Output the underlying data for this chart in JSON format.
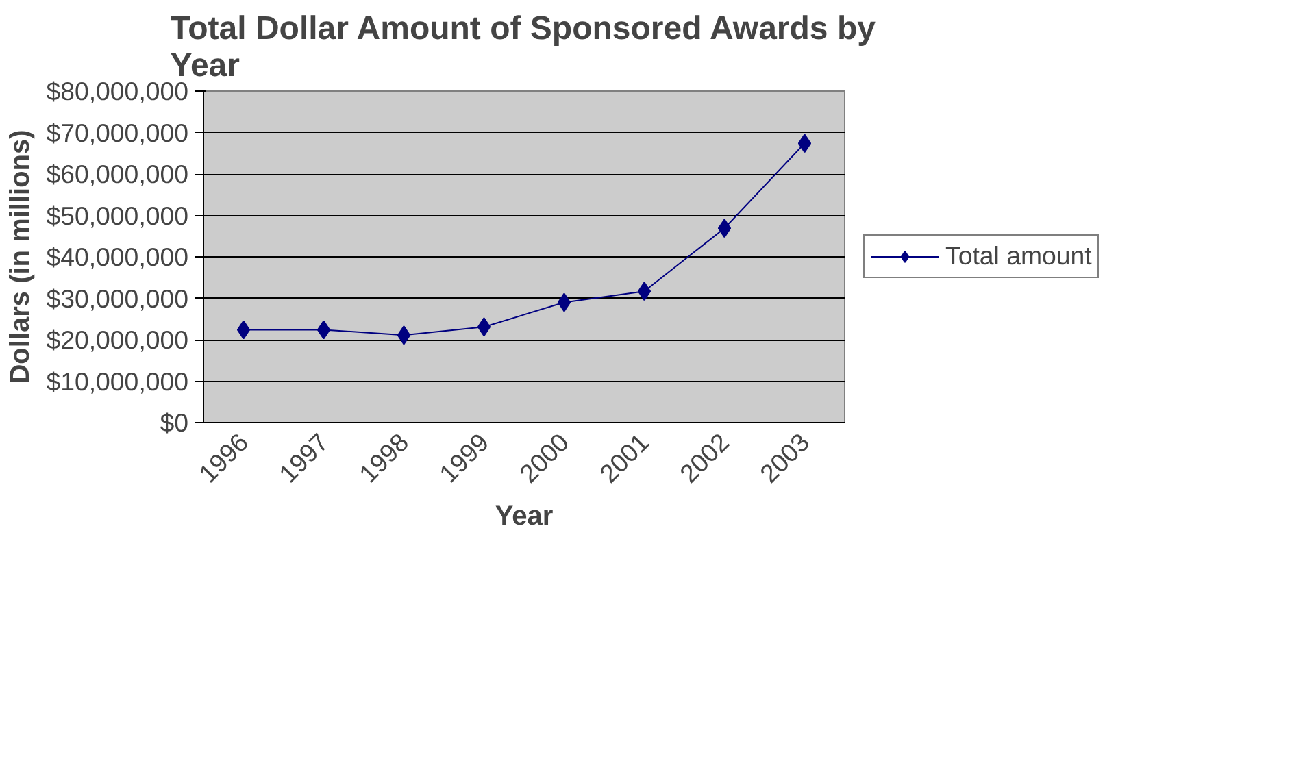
{
  "chart_data": {
    "type": "line",
    "title": "Total Dollar Amount of Sponsored Awards by Year",
    "xlabel": "Year",
    "ylabel": "Dollars (in millions)",
    "categories": [
      "1996",
      "1997",
      "1998",
      "1999",
      "2000",
      "2001",
      "2002",
      "2003"
    ],
    "series": [
      {
        "name": "Total amount",
        "color": "#000080",
        "values": [
          22400000,
          22400000,
          21100000,
          23100000,
          29000000,
          31700000,
          46900000,
          67400000
        ]
      }
    ],
    "ylim": [
      0,
      80000000
    ],
    "yticks": [
      {
        "value": 0,
        "label": "$0"
      },
      {
        "value": 10000000,
        "label": "$10,000,000"
      },
      {
        "value": 20000000,
        "label": "$20,000,000"
      },
      {
        "value": 30000000,
        "label": "$30,000,000"
      },
      {
        "value": 40000000,
        "label": "$40,000,000"
      },
      {
        "value": 50000000,
        "label": "$50,000,000"
      },
      {
        "value": 60000000,
        "label": "$60,000,000"
      },
      {
        "value": 70000000,
        "label": "$70,000,000"
      },
      {
        "value": 80000000,
        "label": "$80,000,000"
      }
    ],
    "grid": "y",
    "legend": "right",
    "marker": "diamond",
    "line_style": "solid"
  }
}
